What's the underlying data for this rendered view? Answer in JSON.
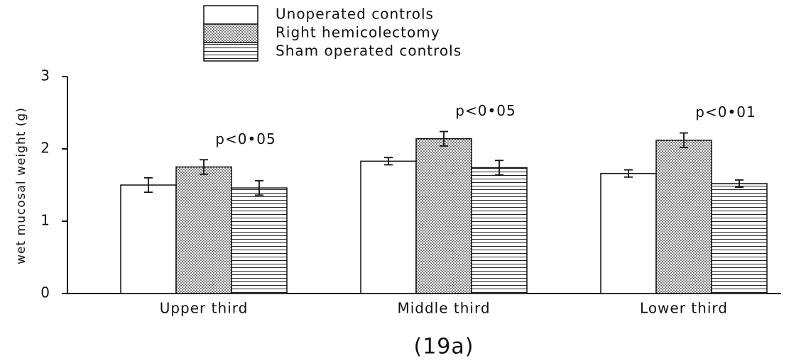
{
  "chart_data": {
    "type": "bar",
    "ylabel": "wet mucosal weight (g)",
    "caption": "(19a)",
    "categories": [
      "Upper third",
      "Middle third",
      "Lower third"
    ],
    "series": [
      {
        "name": "Unoperated controls",
        "color": "#111111",
        "pattern": "none",
        "values": [
          1.5,
          1.83,
          1.66
        ],
        "errors": [
          0.1,
          0.05,
          0.05
        ]
      },
      {
        "name": "Right hemicolectomy",
        "color": "#111111",
        "pattern": "dots",
        "values": [
          1.75,
          2.14,
          2.12
        ],
        "errors": [
          0.1,
          0.1,
          0.1
        ]
      },
      {
        "name": "Sham operated controls",
        "color": "#111111",
        "pattern": "hlines",
        "values": [
          1.46,
          1.74,
          1.52
        ],
        "errors": [
          0.1,
          0.1,
          0.05
        ]
      }
    ],
    "annotations": [
      "p<0•05",
      "p<0•05",
      "p<0•01"
    ],
    "ylim": [
      0,
      3
    ],
    "yticks": [
      0,
      1,
      2,
      3
    ],
    "grid": false
  }
}
